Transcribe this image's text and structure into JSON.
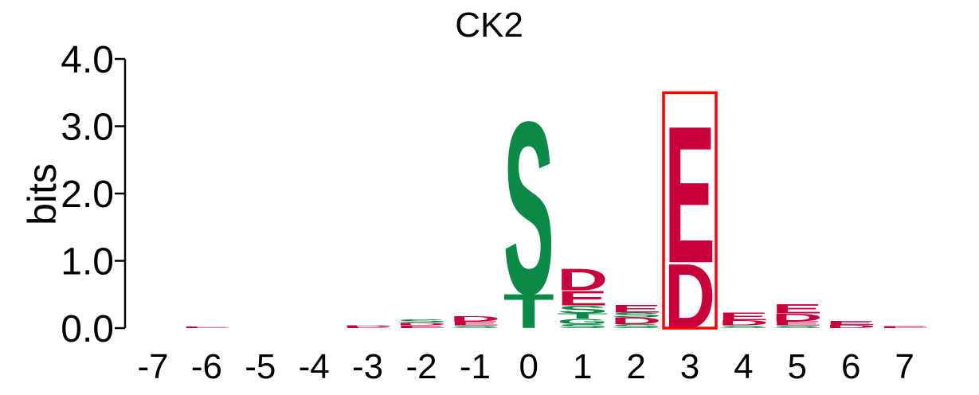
{
  "chart_data": {
    "type": "sequence-logo",
    "title": "CK2",
    "ylabel": "bits",
    "ylim": [
      0,
      4.0
    ],
    "yticks": [
      "0.0",
      "1.0",
      "2.0",
      "3.0",
      "4.0"
    ],
    "ytick_values": [
      0,
      1,
      2,
      3,
      4
    ],
    "positions": [
      "-7",
      "-6",
      "-5",
      "-4",
      "-3",
      "-2",
      "-1",
      "0",
      "1",
      "2",
      "3",
      "4",
      "5",
      "6",
      "7"
    ],
    "colors": {
      "acidic": "#c8003c",
      "polar": "#0a8a46",
      "highlight": "#ff0000"
    },
    "highlighted_position": "3",
    "stacks": [
      {
        "position": "-7",
        "letters": []
      },
      {
        "position": "-6",
        "letters": [
          {
            "letter": "E",
            "height": 0.02,
            "color": "#c8003c"
          }
        ]
      },
      {
        "position": "-5",
        "letters": []
      },
      {
        "position": "-4",
        "letters": []
      },
      {
        "position": "-3",
        "letters": [
          {
            "letter": "E",
            "height": 0.02,
            "color": "#c8003c"
          },
          {
            "letter": "D",
            "height": 0.02,
            "color": "#c8003c"
          }
        ]
      },
      {
        "position": "-2",
        "letters": [
          {
            "letter": "E",
            "height": 0.04,
            "color": "#c8003c"
          },
          {
            "letter": "D",
            "height": 0.04,
            "color": "#c8003c"
          },
          {
            "letter": "S",
            "height": 0.05,
            "color": "#0a8a46"
          }
        ]
      },
      {
        "position": "-1",
        "letters": [
          {
            "letter": "S",
            "height": 0.04,
            "color": "#0a8a46"
          },
          {
            "letter": "E",
            "height": 0.06,
            "color": "#c8003c"
          },
          {
            "letter": "D",
            "height": 0.08,
            "color": "#c8003c"
          }
        ]
      },
      {
        "position": "0",
        "letters": [
          {
            "letter": "T",
            "height": 0.52,
            "color": "#0a8a46"
          },
          {
            "letter": "S",
            "height": 2.62,
            "color": "#0a8a46"
          }
        ]
      },
      {
        "position": "1",
        "letters": [
          {
            "letter": "S",
            "height": 0.06,
            "color": "#0a8a46"
          },
          {
            "letter": "G",
            "height": 0.08,
            "color": "#0a8a46"
          },
          {
            "letter": "T",
            "height": 0.08,
            "color": "#0a8a46"
          },
          {
            "letter": "S",
            "height": 0.12,
            "color": "#0a8a46"
          },
          {
            "letter": "E",
            "height": 0.22,
            "color": "#c8003c"
          },
          {
            "letter": "D",
            "height": 0.33,
            "color": "#c8003c"
          }
        ]
      },
      {
        "position": "2",
        "letters": [
          {
            "letter": "S",
            "height": 0.06,
            "color": "#0a8a46"
          },
          {
            "letter": "D",
            "height": 0.1,
            "color": "#c8003c"
          },
          {
            "letter": "S",
            "height": 0.07,
            "color": "#0a8a46"
          },
          {
            "letter": "E",
            "height": 0.12,
            "color": "#c8003c"
          }
        ]
      },
      {
        "position": "3",
        "letters": [
          {
            "letter": "D",
            "height": 0.98,
            "color": "#c8003c"
          },
          {
            "letter": "E",
            "height": 2.08,
            "color": "#c8003c"
          }
        ]
      },
      {
        "position": "4",
        "letters": [
          {
            "letter": "S",
            "height": 0.04,
            "color": "#0a8a46"
          },
          {
            "letter": "D",
            "height": 0.08,
            "color": "#c8003c"
          },
          {
            "letter": "E",
            "height": 0.12,
            "color": "#c8003c"
          }
        ]
      },
      {
        "position": "5",
        "letters": [
          {
            "letter": "S",
            "height": 0.04,
            "color": "#0a8a46"
          },
          {
            "letter": "E",
            "height": 0.06,
            "color": "#c8003c"
          },
          {
            "letter": "D",
            "height": 0.12,
            "color": "#c8003c"
          },
          {
            "letter": "E",
            "height": 0.14,
            "color": "#c8003c"
          }
        ]
      },
      {
        "position": "6",
        "letters": [
          {
            "letter": "D",
            "height": 0.05,
            "color": "#c8003c"
          },
          {
            "letter": "E",
            "height": 0.06,
            "color": "#c8003c"
          }
        ]
      },
      {
        "position": "7",
        "letters": [
          {
            "letter": "E",
            "height": 0.03,
            "color": "#c8003c"
          }
        ]
      }
    ]
  }
}
